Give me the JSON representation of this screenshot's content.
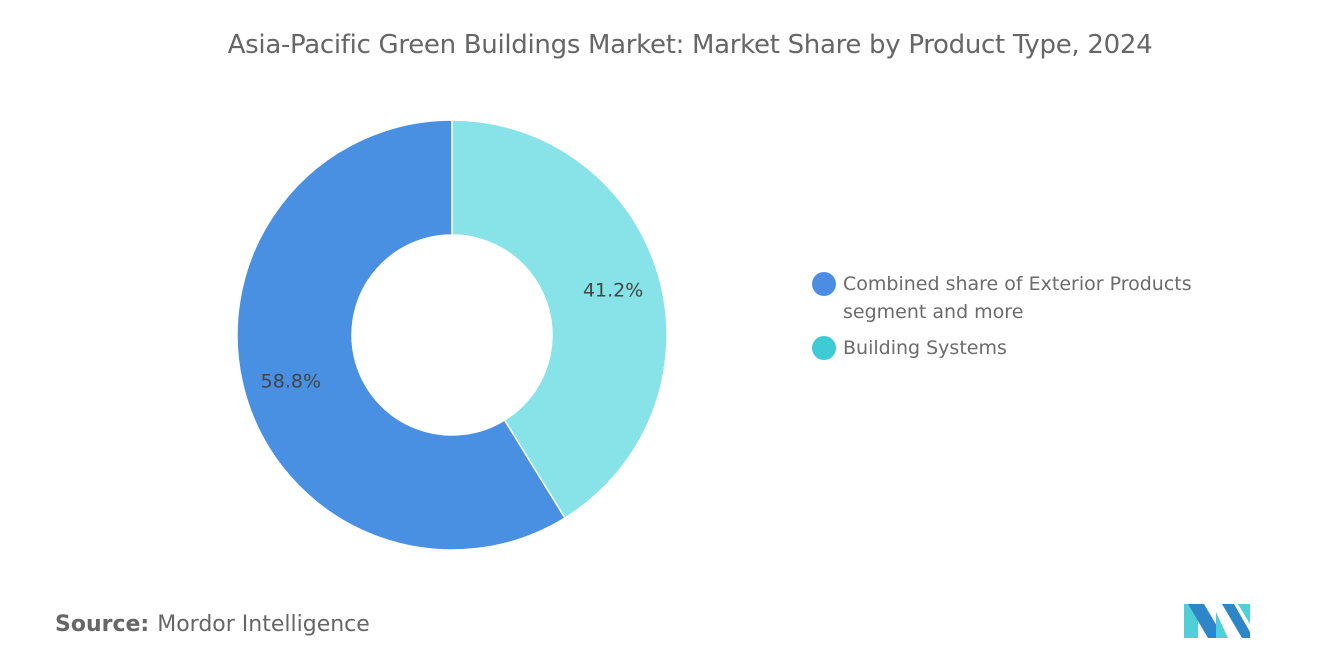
{
  "chart_data": {
    "type": "pie",
    "donut": true,
    "title": "Asia-Pacific Green Buildings Market: Market Share by Product Type, 2024",
    "slices": [
      {
        "label": "Building Systems",
        "value": 41.2,
        "display": "41.2%",
        "color": "#88E3E8",
        "legend_color": "#3ECBD6"
      },
      {
        "label": "Combined share of Exterior Products segment and more",
        "value": 58.8,
        "display": "58.8%",
        "color": "#4A90E2",
        "legend_color": "#4A8DE2"
      }
    ],
    "legend_order": [
      1,
      0
    ],
    "legend_placement": "right"
  },
  "source": {
    "label": "Source:",
    "value": "Mordor Intelligence"
  },
  "logo": {
    "text": "Mordor Intelligence",
    "colors": [
      "#2E86C9",
      "#4FD0D6"
    ]
  }
}
